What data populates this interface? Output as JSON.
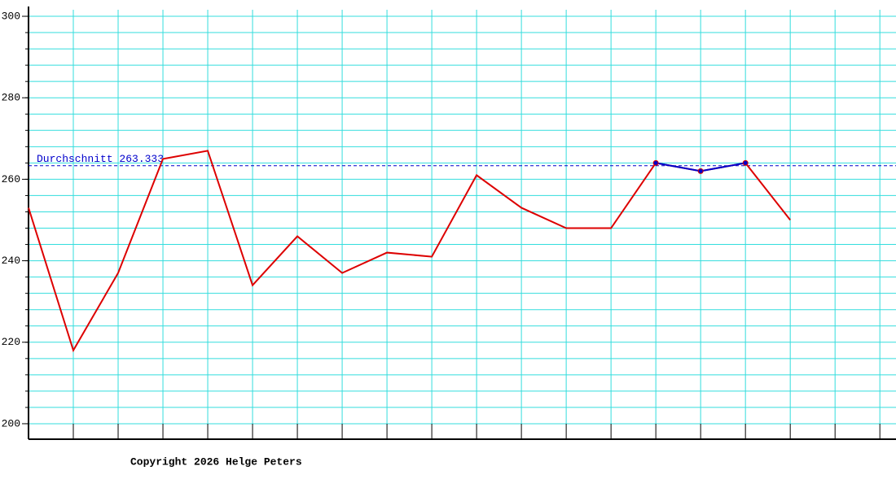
{
  "chart_data": {
    "type": "line",
    "x": [
      0,
      1,
      2,
      3,
      4,
      5,
      6,
      7,
      8,
      9,
      10,
      11,
      12,
      13,
      14,
      15,
      16,
      17
    ],
    "xlim": [
      0,
      19.36
    ],
    "xticks": [
      0,
      1,
      2,
      3,
      4,
      5,
      6,
      7,
      8,
      9,
      10,
      11,
      12,
      13,
      14,
      15,
      16,
      17,
      18,
      19
    ],
    "ylim": [
      196.2,
      302.4
    ],
    "yticks": [
      200,
      220,
      240,
      260,
      280,
      300
    ],
    "yminorticks": [
      200,
      204,
      208,
      212,
      216,
      220,
      224,
      228,
      232,
      236,
      240,
      244,
      248,
      252,
      256,
      260,
      264,
      268,
      272,
      276,
      280,
      284,
      288,
      292,
      296,
      300
    ],
    "grid": true,
    "grid_color": "#33dddd",
    "series": [
      {
        "color": "#dd0000",
        "values": [
          253,
          218,
          237,
          265,
          267,
          234,
          246,
          237,
          242,
          241,
          261,
          253,
          248,
          248,
          264,
          262,
          264,
          250
        ]
      },
      {
        "color": "#0000cc",
        "markers": true,
        "values": [
          null,
          null,
          null,
          null,
          null,
          null,
          null,
          null,
          null,
          null,
          null,
          null,
          null,
          null,
          264,
          262,
          264,
          null
        ]
      }
    ],
    "average": {
      "value": 263.333,
      "label": "Durchschnitt 263.333",
      "color": "#0000cc"
    },
    "footer": "Copyright 2026 Helge Peters"
  }
}
